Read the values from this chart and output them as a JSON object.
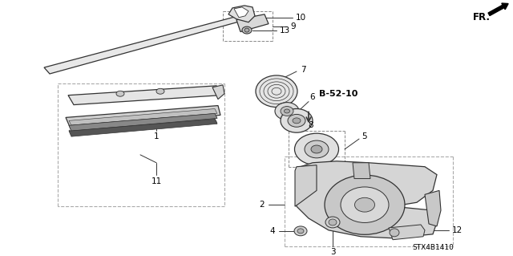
{
  "background_color": "#ffffff",
  "part_code": "STX4B1410",
  "line_color": "#555555",
  "dark_line": "#333333",
  "text_color": "#000000"
}
